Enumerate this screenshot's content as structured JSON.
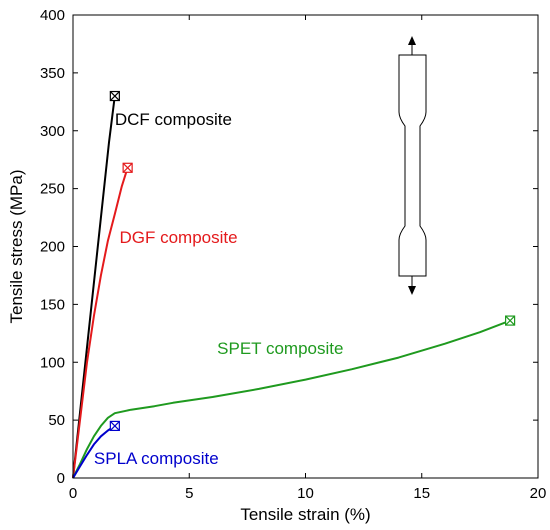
{
  "chart_data": {
    "type": "line",
    "xlabel": "Tensile strain (%)",
    "ylabel": "Tensile stress (MPa)",
    "xlim": [
      0,
      20
    ],
    "ylim": [
      0,
      400
    ],
    "xticks": [
      0,
      5,
      10,
      15,
      20
    ],
    "yticks": [
      0,
      50,
      100,
      150,
      200,
      250,
      300,
      350,
      400
    ],
    "grid": false,
    "series": [
      {
        "name": "DCF composite",
        "color": "#000000",
        "points": [
          [
            0,
            0
          ],
          [
            0.4,
            75
          ],
          [
            0.8,
            150
          ],
          [
            1.2,
            225
          ],
          [
            1.55,
            290
          ],
          [
            1.8,
            330
          ]
        ],
        "end_marker": [
          1.8,
          330
        ],
        "label_at": [
          1.8,
          305
        ]
      },
      {
        "name": "DGF composite",
        "color": "#e41a1c",
        "points": [
          [
            0,
            0
          ],
          [
            0.3,
            50
          ],
          [
            0.6,
            100
          ],
          [
            0.9,
            140
          ],
          [
            1.2,
            175
          ],
          [
            1.5,
            205
          ],
          [
            1.8,
            228
          ],
          [
            2.1,
            252
          ],
          [
            2.35,
            268
          ]
        ],
        "end_marker": [
          2.35,
          268
        ],
        "label_at": [
          2.0,
          203
        ]
      },
      {
        "name": "SPET composite",
        "color": "#1f9a1f",
        "points": [
          [
            0,
            0
          ],
          [
            0.3,
            12
          ],
          [
            0.6,
            25
          ],
          [
            0.9,
            36
          ],
          [
            1.2,
            45
          ],
          [
            1.5,
            52
          ],
          [
            1.8,
            56
          ],
          [
            2.5,
            59
          ],
          [
            3.5,
            62
          ],
          [
            4.3,
            65
          ],
          [
            6,
            70
          ],
          [
            8,
            77
          ],
          [
            10,
            85
          ],
          [
            12,
            94
          ],
          [
            14,
            104
          ],
          [
            16,
            116
          ],
          [
            17.5,
            126
          ],
          [
            18.8,
            136
          ]
        ],
        "end_marker": [
          18.8,
          136
        ],
        "label_at": [
          6.2,
          107
        ]
      },
      {
        "name": "SPLA composite",
        "color": "#0000cc",
        "points": [
          [
            0,
            0
          ],
          [
            0.3,
            10
          ],
          [
            0.6,
            20
          ],
          [
            0.9,
            29
          ],
          [
            1.2,
            36
          ],
          [
            1.5,
            41
          ],
          [
            1.8,
            45
          ]
        ],
        "end_marker": [
          1.8,
          45
        ],
        "label_at": [
          0.9,
          12
        ]
      }
    ]
  }
}
